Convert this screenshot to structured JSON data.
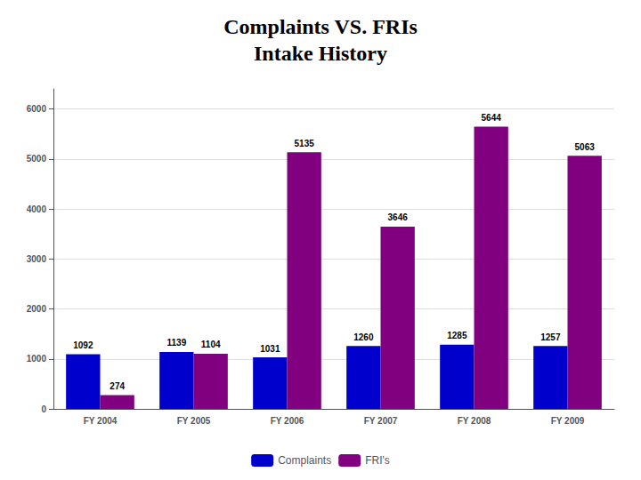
{
  "chart_data": {
    "type": "bar",
    "title": "Complaints VS. FRIs\nIntake History",
    "categories": [
      "FY 2004",
      "FY 2005",
      "FY 2006",
      "FY 2007",
      "FY 2008",
      "FY 2009"
    ],
    "series": [
      {
        "name": "Complaints",
        "color": "#0000CC",
        "values": [
          1092,
          1139,
          1031,
          1260,
          1285,
          1257
        ]
      },
      {
        "name": "FRI's",
        "color": "#800080",
        "values": [
          274,
          1104,
          5135,
          3646,
          5644,
          5063
        ]
      }
    ],
    "ylim": [
      0,
      6400
    ],
    "yticks": [
      0,
      1000,
      2000,
      3000,
      4000,
      5000,
      6000
    ],
    "grid": true,
    "legend": "bottom",
    "data_labels": true
  }
}
